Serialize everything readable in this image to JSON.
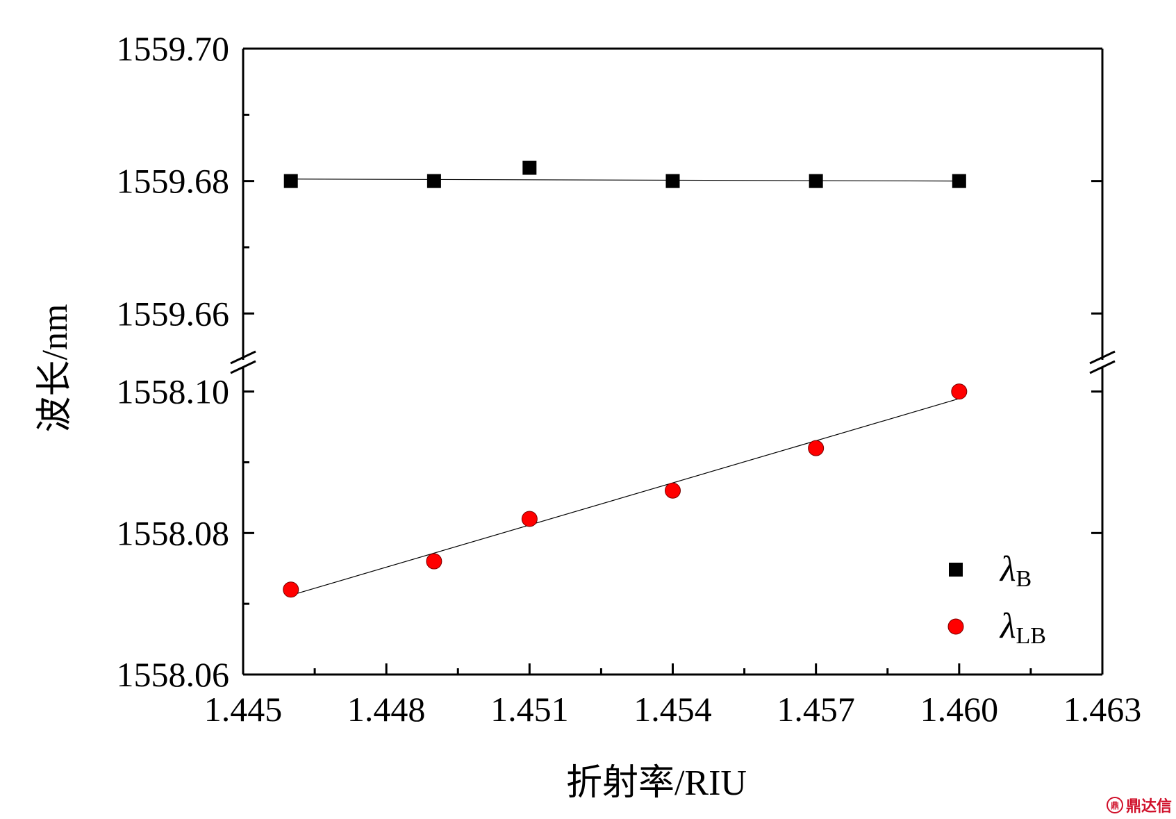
{
  "chart_data": {
    "type": "scatter",
    "xlabel": "折射率/RIU",
    "ylabel": "波长/nm",
    "x_ticks": [
      "1.445",
      "1.448",
      "1.451",
      "1.454",
      "1.457",
      "1.460",
      "1.463"
    ],
    "xlim": [
      1.445,
      1.463
    ],
    "broken_y_axis": true,
    "y_upper_ticks": [
      "1559.66",
      "1559.68",
      "1559.70"
    ],
    "y_upper_range": [
      1559.653,
      1559.7
    ],
    "y_lower_ticks": [
      "1558.06",
      "1558.08",
      "1558.10"
    ],
    "y_lower_range": [
      1558.06,
      1558.1035
    ],
    "series": [
      {
        "name": "λB",
        "legend_symbol": "λ",
        "legend_subscript": "B",
        "marker": "square",
        "color": "#000000",
        "segment": "upper",
        "x": [
          1.446,
          1.449,
          1.451,
          1.454,
          1.457,
          1.46
        ],
        "y": [
          1559.68,
          1559.68,
          1559.682,
          1559.68,
          1559.68,
          1559.68
        ],
        "fit": {
          "x": [
            1.446,
            1.46
          ],
          "y": [
            1559.6803,
            1559.68
          ]
        }
      },
      {
        "name": "λLB",
        "legend_symbol": "λ",
        "legend_subscript": "LB",
        "marker": "circle",
        "color": "#ff0000",
        "segment": "lower",
        "x": [
          1.446,
          1.449,
          1.451,
          1.454,
          1.457,
          1.46
        ],
        "y": [
          1558.072,
          1558.076,
          1558.082,
          1558.086,
          1558.092,
          1558.1
        ],
        "fit": {
          "x": [
            1.446,
            1.46
          ],
          "y": [
            1558.0712,
            1558.099
          ]
        }
      }
    ],
    "legend_position": "lower-right",
    "grid": false
  },
  "watermark": {
    "logo": "鼎",
    "text": "鼎达信"
  }
}
